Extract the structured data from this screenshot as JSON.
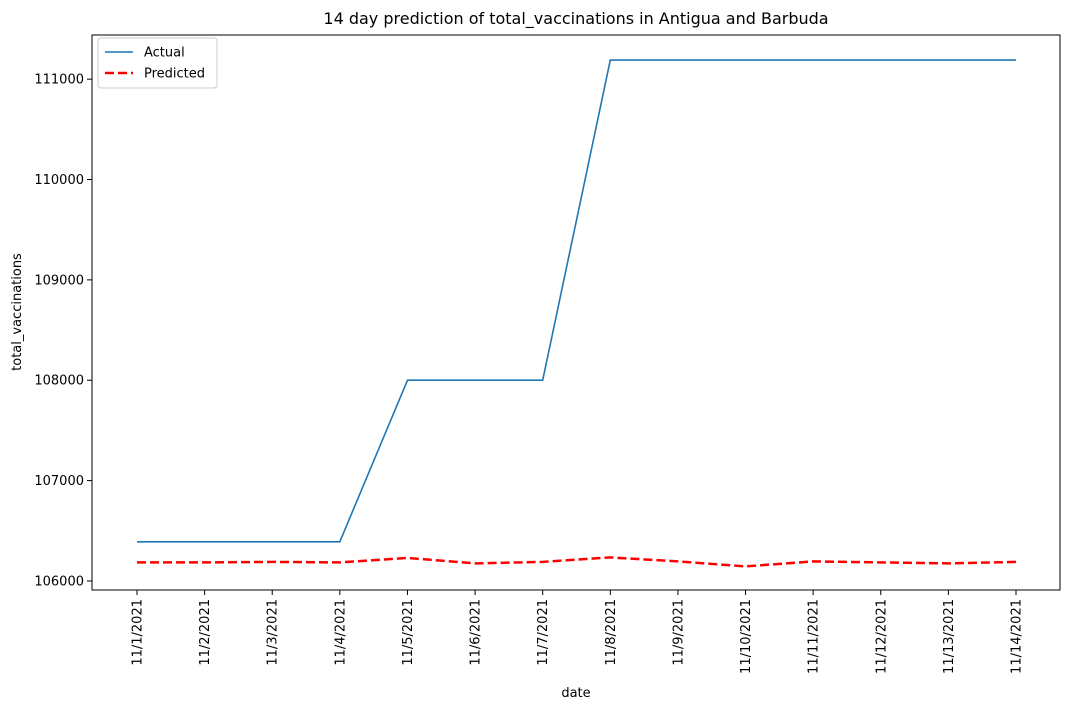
{
  "chart_data": {
    "type": "line",
    "title": "14 day prediction of total_vaccinations in Antigua and Barbuda",
    "xlabel": "date",
    "ylabel": "total_vaccinations",
    "categories": [
      "11/1/2021",
      "11/2/2021",
      "11/3/2021",
      "11/4/2021",
      "11/5/2021",
      "11/6/2021",
      "11/7/2021",
      "11/8/2021",
      "11/9/2021",
      "11/10/2021",
      "11/11/2021",
      "11/12/2021",
      "11/13/2021",
      "11/14/2021"
    ],
    "ylim": [
      105910,
      111440
    ],
    "yticks": [
      106000,
      107000,
      108000,
      109000,
      110000,
      111000
    ],
    "ytick_labels": [
      "106000",
      "107000",
      "108000",
      "109000",
      "110000",
      "111000"
    ],
    "grid": false,
    "legend": "upper-left",
    "series": [
      {
        "name": "Actual",
        "color": "#1f77b4",
        "style": "solid",
        "values": [
          106390,
          106390,
          106390,
          106390,
          108000,
          108000,
          108000,
          111190,
          111190,
          111190,
          111190,
          111190,
          111190,
          111190
        ]
      },
      {
        "name": "Predicted",
        "color": "#ff0000",
        "style": "dashed",
        "values": [
          106185,
          106185,
          106190,
          106185,
          106230,
          106175,
          106190,
          106235,
          106195,
          106145,
          106195,
          106185,
          106175,
          106190
        ]
      }
    ]
  }
}
